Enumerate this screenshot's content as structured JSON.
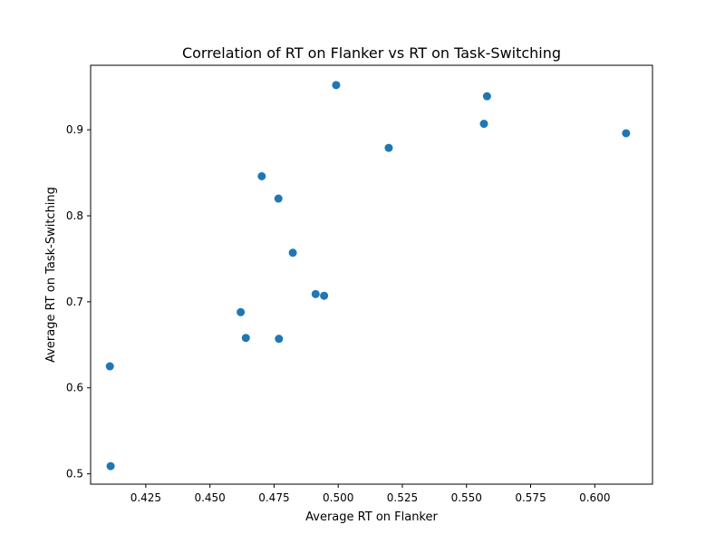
{
  "chart_data": {
    "type": "scatter",
    "title": "Correlation of RT on Flanker vs RT on Task-Switching",
    "xlabel": "Average RT on Flanker",
    "ylabel": "Average RT on Task-Switching",
    "xlim": [
      0.4035,
      0.6225
    ],
    "ylim": [
      0.488,
      0.975
    ],
    "xticks": [
      "0.425",
      "0.450",
      "0.475",
      "0.500",
      "0.525",
      "0.550",
      "0.575",
      "0.600"
    ],
    "yticks": [
      "0.5",
      "0.6",
      "0.7",
      "0.8",
      "0.9"
    ],
    "grid": false,
    "marker_color": "#1f77b4",
    "points": [
      {
        "x": 0.411,
        "y": 0.625
      },
      {
        "x": 0.4113,
        "y": 0.509
      },
      {
        "x": 0.462,
        "y": 0.688
      },
      {
        "x": 0.464,
        "y": 0.658
      },
      {
        "x": 0.4702,
        "y": 0.846
      },
      {
        "x": 0.4767,
        "y": 0.82
      },
      {
        "x": 0.4769,
        "y": 0.657
      },
      {
        "x": 0.4823,
        "y": 0.757
      },
      {
        "x": 0.4912,
        "y": 0.709
      },
      {
        "x": 0.4945,
        "y": 0.707
      },
      {
        "x": 0.4992,
        "y": 0.952
      },
      {
        "x": 0.5197,
        "y": 0.879
      },
      {
        "x": 0.5568,
        "y": 0.907
      },
      {
        "x": 0.558,
        "y": 0.939
      },
      {
        "x": 0.6122,
        "y": 0.896
      }
    ]
  }
}
